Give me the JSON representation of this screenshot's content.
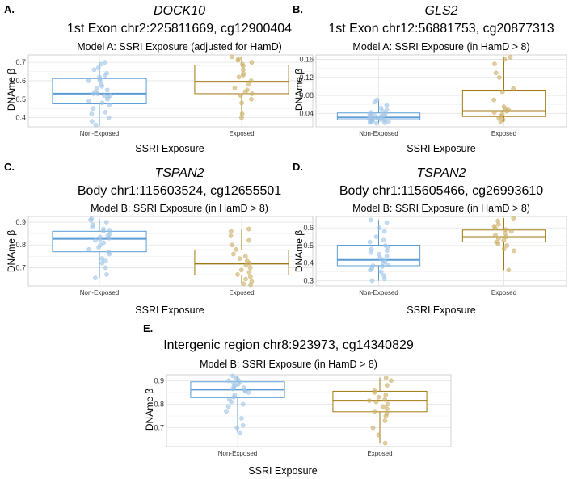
{
  "chart_data": [
    {
      "type": "box",
      "panel_label": "A.",
      "gene": "DOCK10",
      "location": "1st Exon chr2:225811669, cg12900404",
      "model": "Model A: SSRI Exposure (adjusted for HamD)",
      "xlabel": "SSRI Exposure",
      "ylabel": "DNAme β",
      "yticks": [
        "0.4",
        "0.5",
        "0.6",
        "0.7"
      ],
      "ylim": [
        0.35,
        0.74
      ],
      "categories": [
        "Non-Exposed",
        "Exposed"
      ],
      "boxes": [
        {
          "category": "Non-Exposed",
          "q1": 0.475,
          "median": 0.53,
          "q3": 0.612,
          "whisker_low": 0.355,
          "whisker_high": 0.7,
          "points": [
            0.7,
            0.69,
            0.67,
            0.66,
            0.64,
            0.63,
            0.62,
            0.61,
            0.6,
            0.6,
            0.58,
            0.57,
            0.56,
            0.55,
            0.54,
            0.53,
            0.53,
            0.52,
            0.52,
            0.51,
            0.5,
            0.49,
            0.48,
            0.47,
            0.45,
            0.43,
            0.42,
            0.4,
            0.38,
            0.36
          ]
        },
        {
          "category": "Exposed",
          "q1": 0.53,
          "median": 0.595,
          "q3": 0.685,
          "whisker_low": 0.4,
          "whisker_high": 0.73,
          "points": [
            0.73,
            0.72,
            0.71,
            0.7,
            0.69,
            0.68,
            0.66,
            0.64,
            0.63,
            0.62,
            0.6,
            0.58,
            0.56,
            0.55,
            0.54,
            0.53,
            0.52,
            0.5,
            0.48,
            0.42,
            0.4
          ]
        }
      ]
    },
    {
      "type": "box",
      "panel_label": "B.",
      "gene": "GLS2",
      "location": "1st Exon chr12:56881753, cg20877313",
      "model": "Model A: SSRI Exposure (in HamD > 8)",
      "xlabel": "SSRI Exposure",
      "ylabel": "DNAme β",
      "yticks": [
        "0.04",
        "0.08",
        "0.12",
        "0.16"
      ],
      "ylim": [
        0.01,
        0.17
      ],
      "categories": [
        "Non-Exposed",
        "Exposed"
      ],
      "boxes": [
        {
          "category": "Non-Exposed",
          "q1": 0.026,
          "median": 0.031,
          "q3": 0.041,
          "whisker_low": 0.018,
          "whisker_high": 0.07,
          "points": [
            0.07,
            0.065,
            0.058,
            0.052,
            0.048,
            0.045,
            0.042,
            0.04,
            0.038,
            0.036,
            0.035,
            0.034,
            0.033,
            0.032,
            0.031,
            0.03,
            0.03,
            0.029,
            0.028,
            0.027,
            0.026,
            0.025,
            0.024,
            0.023,
            0.022,
            0.021,
            0.02,
            0.019,
            0.018
          ]
        },
        {
          "category": "Exposed",
          "q1": 0.033,
          "median": 0.045,
          "q3": 0.09,
          "whisker_low": 0.022,
          "whisker_high": 0.165,
          "points": [
            0.165,
            0.16,
            0.15,
            0.13,
            0.12,
            0.095,
            0.088,
            0.07,
            0.055,
            0.05,
            0.047,
            0.045,
            0.042,
            0.038,
            0.034,
            0.03,
            0.026,
            0.022
          ]
        }
      ]
    },
    {
      "type": "box",
      "panel_label": "C.",
      "gene": "TSPAN2",
      "location": "Body chr1:115603524, cg12655501",
      "model": "Model B: SSRI Exposure (in HamD > 8)",
      "xlabel": "SSRI Exposure",
      "ylabel": "DNAme β",
      "yticks": [
        "0.7",
        "0.8",
        "0.9"
      ],
      "ylim": [
        0.62,
        0.925
      ],
      "categories": [
        "Non-Exposed",
        "Exposed"
      ],
      "boxes": [
        {
          "category": "Non-Exposed",
          "q1": 0.77,
          "median": 0.827,
          "q3": 0.86,
          "whisker_low": 0.655,
          "whisker_high": 0.915,
          "points": [
            0.915,
            0.91,
            0.9,
            0.89,
            0.88,
            0.87,
            0.865,
            0.86,
            0.85,
            0.84,
            0.835,
            0.83,
            0.825,
            0.82,
            0.81,
            0.8,
            0.79,
            0.78,
            0.77,
            0.76,
            0.74,
            0.73,
            0.72,
            0.7,
            0.67,
            0.655
          ]
        },
        {
          "category": "Exposed",
          "q1": 0.668,
          "median": 0.718,
          "q3": 0.778,
          "whisker_low": 0.625,
          "whisker_high": 0.87,
          "points": [
            0.87,
            0.86,
            0.84,
            0.82,
            0.8,
            0.78,
            0.76,
            0.75,
            0.74,
            0.73,
            0.72,
            0.71,
            0.7,
            0.69,
            0.68,
            0.67,
            0.66,
            0.65,
            0.64,
            0.63,
            0.625
          ]
        }
      ]
    },
    {
      "type": "box",
      "panel_label": "D.",
      "gene": "TSPAN2",
      "location": "Body chr1:115605466, cg26993610",
      "model": "Model B: SSRI Exposure (in HamD > 8)",
      "xlabel": "SSRI Exposure",
      "ylabel": "DNAme β",
      "yticks": [
        "0.3",
        "0.4",
        "0.5",
        "0.6"
      ],
      "ylim": [
        0.27,
        0.665
      ],
      "categories": [
        "Non-Exposed",
        "Exposed"
      ],
      "boxes": [
        {
          "category": "Non-Exposed",
          "q1": 0.385,
          "median": 0.418,
          "q3": 0.502,
          "whisker_low": 0.3,
          "whisker_high": 0.645,
          "points": [
            0.645,
            0.63,
            0.6,
            0.58,
            0.55,
            0.53,
            0.52,
            0.5,
            0.49,
            0.48,
            0.47,
            0.46,
            0.45,
            0.44,
            0.43,
            0.42,
            0.41,
            0.4,
            0.39,
            0.385,
            0.38,
            0.37,
            0.36,
            0.35,
            0.33,
            0.31,
            0.3
          ]
        },
        {
          "category": "Exposed",
          "q1": 0.52,
          "median": 0.548,
          "q3": 0.588,
          "whisker_low": 0.36,
          "whisker_high": 0.655,
          "points": [
            0.655,
            0.64,
            0.62,
            0.61,
            0.6,
            0.59,
            0.58,
            0.57,
            0.56,
            0.55,
            0.54,
            0.53,
            0.52,
            0.51,
            0.5,
            0.48,
            0.47,
            0.36
          ]
        }
      ]
    },
    {
      "type": "box",
      "panel_label": "E.",
      "gene": "",
      "location": "Intergenic region chr8:923973, cg14340829",
      "model": "Model B: SSRI Exposure (in HamD > 8)",
      "xlabel": "SSRI Exposure",
      "ylabel": "DNAme β",
      "yticks": [
        "0.7",
        "0.8",
        "0.9"
      ],
      "ylim": [
        0.62,
        0.925
      ],
      "categories": [
        "Non-Exposed",
        "Exposed"
      ],
      "boxes": [
        {
          "category": "Non-Exposed",
          "q1": 0.828,
          "median": 0.862,
          "q3": 0.895,
          "whisker_low": 0.68,
          "whisker_high": 0.92,
          "points": [
            0.92,
            0.91,
            0.905,
            0.9,
            0.895,
            0.89,
            0.885,
            0.88,
            0.875,
            0.87,
            0.865,
            0.86,
            0.855,
            0.85,
            0.84,
            0.83,
            0.82,
            0.81,
            0.8,
            0.79,
            0.77,
            0.74,
            0.71,
            0.7,
            0.68
          ]
        },
        {
          "category": "Exposed",
          "q1": 0.768,
          "median": 0.815,
          "q3": 0.855,
          "whisker_low": 0.635,
          "whisker_high": 0.912,
          "points": [
            0.912,
            0.9,
            0.88,
            0.86,
            0.85,
            0.84,
            0.83,
            0.82,
            0.815,
            0.81,
            0.8,
            0.79,
            0.78,
            0.77,
            0.76,
            0.75,
            0.73,
            0.7,
            0.67,
            0.635
          ]
        }
      ]
    }
  ],
  "colors": {
    "non_exposed": "#5b9bd5",
    "non_exposed_point": "#9dc3e6",
    "exposed": "#a07a10",
    "exposed_point": "#c9ad62",
    "grid": "#e3e3e3",
    "panel_border": "#c8c8c8"
  }
}
